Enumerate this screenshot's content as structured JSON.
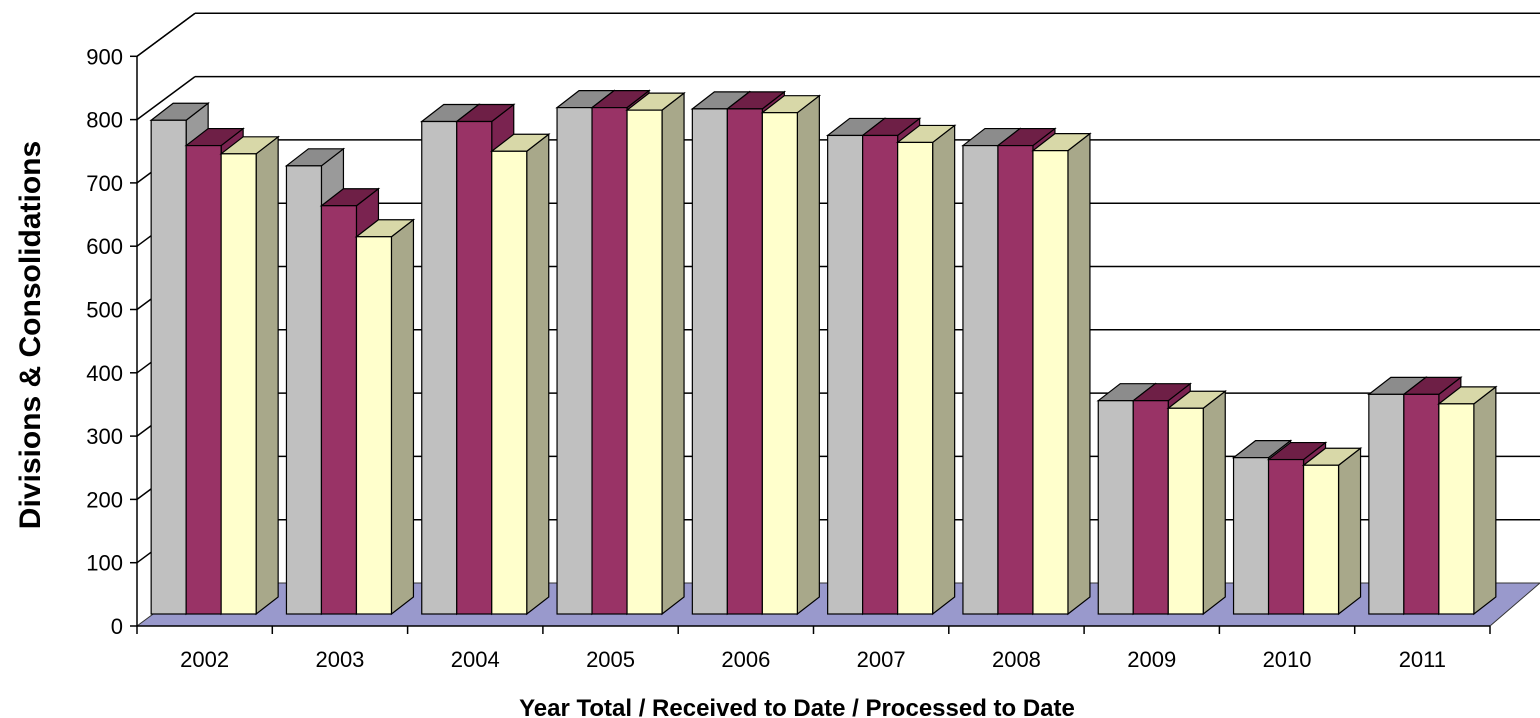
{
  "chart_data": {
    "type": "bar",
    "style": "3d-clustered-column",
    "xlabel": "Year Total / Received to Date / Processed to Date",
    "ylabel": "Divisions & Consolidations",
    "ylim": [
      0,
      900
    ],
    "yticks": [
      0,
      100,
      200,
      300,
      400,
      500,
      600,
      700,
      800,
      900
    ],
    "grid": true,
    "legend": "none",
    "categories": [
      "2002",
      "2003",
      "2004",
      "2005",
      "2006",
      "2007",
      "2008",
      "2009",
      "2010",
      "2011"
    ],
    "series": [
      {
        "values": [
          780,
          708,
          778,
          800,
          798,
          756,
          740,
          337,
          247,
          347
        ]
      },
      {
        "values": [
          740,
          645,
          778,
          800,
          798,
          756,
          740,
          337,
          244,
          347
        ]
      },
      {
        "values": [
          727,
          596,
          731,
          796,
          792,
          745,
          732,
          325,
          235,
          332
        ]
      }
    ],
    "colors": {
      "series_front": [
        "#c0c0c0",
        "#993366",
        "#ffffcc"
      ],
      "series_top": [
        "#8c8c8c",
        "#6e1f46",
        "#d8d8a8"
      ],
      "series_side": [
        "#9a9a9a",
        "#7a2350",
        "#a8a88a"
      ],
      "floor": "#9999cc",
      "gridline": "#000000"
    }
  }
}
